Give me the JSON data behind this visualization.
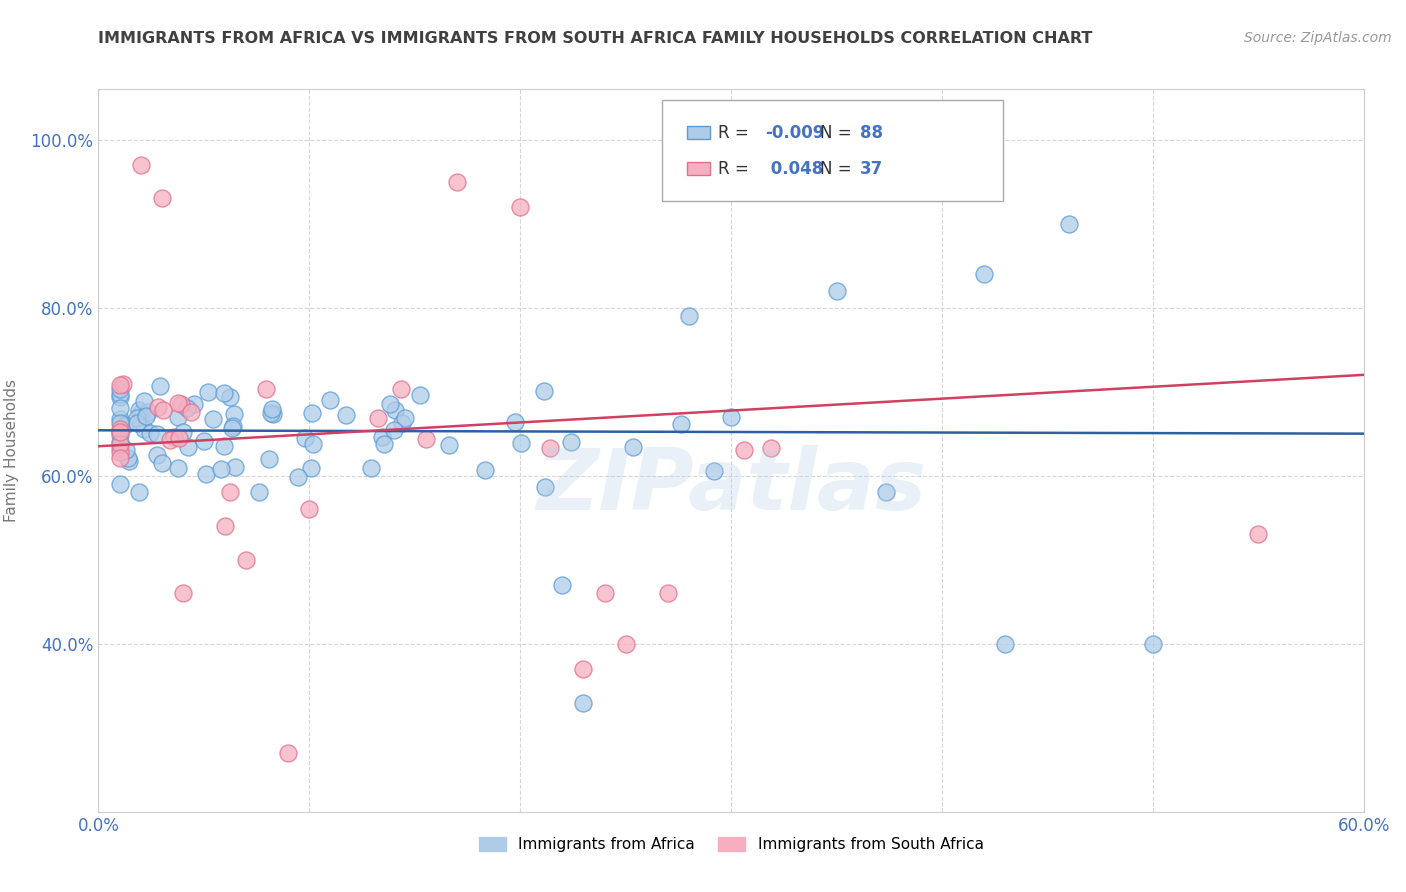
{
  "title": "IMMIGRANTS FROM AFRICA VS IMMIGRANTS FROM SOUTH AFRICA FAMILY HOUSEHOLDS CORRELATION CHART",
  "source": "Source: ZipAtlas.com",
  "ylabel": "Family Households",
  "xlim": [
    0.0,
    0.6
  ],
  "ylim": [
    0.2,
    1.06
  ],
  "ytick_vals": [
    0.4,
    0.6,
    0.8,
    1.0
  ],
  "ytick_labels": [
    "40.0%",
    "60.0%",
    "80.0%",
    "100.0%"
  ],
  "xtick_vals": [
    0.0,
    0.1,
    0.2,
    0.3,
    0.4,
    0.5,
    0.6
  ],
  "xtick_labels": [
    "0.0%",
    "",
    "",
    "",
    "",
    "",
    "60.0%"
  ],
  "series1_color": "#aecce8",
  "series2_color": "#f5afc0",
  "series1_edge": "#5b9bd5",
  "series2_edge": "#e07090",
  "trend1_color": "#2e5fa3",
  "trend2_color": "#d04060",
  "R1": -0.009,
  "N1": 88,
  "R2": 0.048,
  "N2": 37,
  "watermark": "ZIPatlas",
  "background_color": "#ffffff",
  "grid_color": "#cccccc",
  "title_color": "#404040",
  "axis_label_color": "#777777",
  "tick_color": "#4472C4",
  "legend_label1": "Immigrants from Africa",
  "legend_label2": "Immigrants from South Africa",
  "blue_trend_x": [
    0.0,
    0.6
  ],
  "blue_trend_y": [
    0.654,
    0.65
  ],
  "pink_trend_x": [
    0.0,
    0.6
  ],
  "pink_trend_y": [
    0.635,
    0.72
  ]
}
